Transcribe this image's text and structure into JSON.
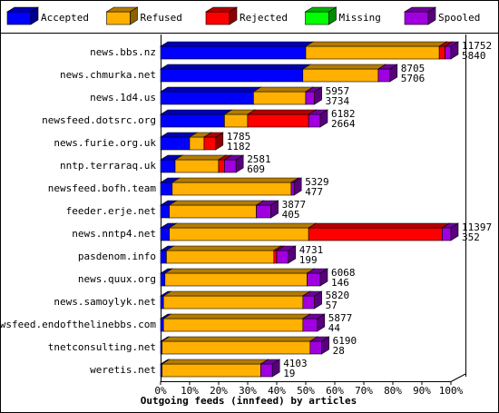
{
  "chart_data": {
    "type": "bar3d",
    "x_axis_label": "Outgoing feeds (innfeed) by articles",
    "categories": [
      "news.bbs.nz",
      "news.chmurka.net",
      "news.1d4.us",
      "newsfeed.dotsrc.org",
      "news.furie.org.uk",
      "nntp.terraraq.uk",
      "newsfeed.bofh.team",
      "feeder.erje.net",
      "news.nntp4.net",
      "pasdenom.info",
      "news.quux.org",
      "news.samoylyk.net",
      "newsfeed.endofthelinebbs.com",
      "tnetconsulting.net",
      "weretis.net"
    ],
    "series": [
      {
        "name": "Accepted",
        "color": "#0000ff",
        "values": [
          50,
          49,
          32,
          22,
          10,
          5,
          4,
          3,
          3,
          2,
          1.5,
          1,
          1,
          0.5,
          0.5
        ]
      },
      {
        "name": "Refused",
        "color": "#ffb000",
        "values": [
          46,
          26,
          18,
          8,
          5,
          15,
          41,
          30,
          48,
          37,
          49,
          48,
          48,
          51,
          34
        ]
      },
      {
        "name": "Rejected",
        "color": "#ff0000",
        "values": [
          2,
          0,
          0,
          21,
          4,
          2,
          0,
          0,
          46,
          1,
          0,
          0,
          0,
          0,
          0
        ]
      },
      {
        "name": "Missing",
        "color": "#00ff00",
        "values": [
          0,
          0,
          0,
          0,
          0,
          0,
          0,
          0,
          0,
          0,
          0,
          0,
          0,
          0,
          0
        ]
      },
      {
        "name": "Spooled",
        "color": "#a000e0",
        "values": [
          2,
          4,
          3,
          4,
          0,
          4,
          1,
          5,
          3,
          4,
          4.5,
          4,
          5,
          4,
          4
        ]
      }
    ],
    "offered": [
      11752,
      8705,
      5957,
      6182,
      1785,
      2581,
      5329,
      3877,
      11397,
      4731,
      6068,
      5820,
      5877,
      6190,
      4103
    ],
    "accepted": [
      5840,
      5706,
      3734,
      2664,
      1182,
      609,
      477,
      405,
      352,
      199,
      146,
      57,
      44,
      28,
      19
    ],
    "xlim": [
      0,
      100
    ],
    "xticks": [
      {
        "value": 0,
        "label": "0%"
      },
      {
        "value": 10,
        "label": "10%"
      },
      {
        "value": 20,
        "label": "20%"
      },
      {
        "value": 30,
        "label": "30%"
      },
      {
        "value": 40,
        "label": "40%"
      },
      {
        "value": 50,
        "label": "50%"
      },
      {
        "value": 60,
        "label": "60%"
      },
      {
        "value": 70,
        "label": "70%"
      },
      {
        "value": 80,
        "label": "80%"
      },
      {
        "value": 90,
        "label": "90%"
      },
      {
        "value": 100,
        "label": "100%"
      }
    ]
  }
}
